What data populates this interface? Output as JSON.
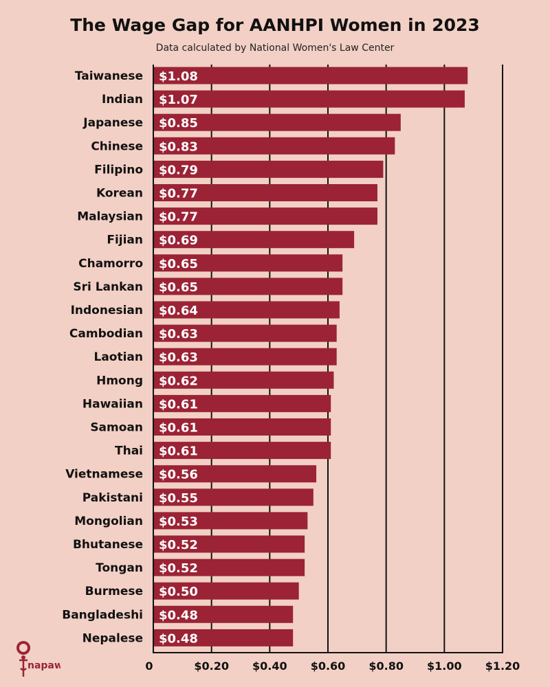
{
  "chart_data": {
    "type": "bar",
    "orientation": "horizontal",
    "title": "The Wage Gap for AANHPI Women in 2023",
    "subtitle": "Data calculated by National Women's Law Center",
    "categories": [
      "Taiwanese",
      "Indian",
      "Japanese",
      "Chinese",
      "Filipino",
      "Korean",
      "Malaysian",
      "Fijian",
      "Chamorro",
      "Sri Lankan",
      "Indonesian",
      "Cambodian",
      "Laotian",
      "Hmong",
      "Hawaiian",
      "Samoan",
      "Thai",
      "Vietnamese",
      "Pakistani",
      "Mongolian",
      "Bhutanese",
      "Tongan",
      "Burmese",
      "Bangladeshi",
      "Nepalese"
    ],
    "values": [
      1.08,
      1.07,
      0.85,
      0.83,
      0.79,
      0.77,
      0.77,
      0.69,
      0.65,
      0.65,
      0.64,
      0.63,
      0.63,
      0.62,
      0.61,
      0.61,
      0.61,
      0.56,
      0.55,
      0.53,
      0.52,
      0.52,
      0.5,
      0.48,
      0.48
    ],
    "data_labels": [
      "$1.08",
      "$1.07",
      "$0.85",
      "$0.83",
      "$0.79",
      "$0.77",
      "$0.77",
      "$0.69",
      "$0.65",
      "$0.65",
      "$0.64",
      "$0.63",
      "$0.63",
      "$0.62",
      "$0.61",
      "$0.61",
      "$0.61",
      "$0.56",
      "$0.55",
      "$0.53",
      "$0.52",
      "$0.52",
      "$0.50",
      "$0.48",
      "$0.48"
    ],
    "xlim": [
      0,
      1.2
    ],
    "xticks": [
      0,
      0.2,
      0.4,
      0.6,
      0.8,
      1.0,
      1.2
    ],
    "xtick_labels": [
      "0",
      "$0.20",
      "$0.40",
      "$0.60",
      "$0.80",
      "$1.00",
      "$1.20"
    ],
    "xlabel": "",
    "ylabel": "",
    "grid": "vertical",
    "colors": {
      "bar": "#9b2335",
      "background": "#f2d0c5"
    }
  },
  "logo": {
    "text": "napawf",
    "color": "#9b2335"
  }
}
